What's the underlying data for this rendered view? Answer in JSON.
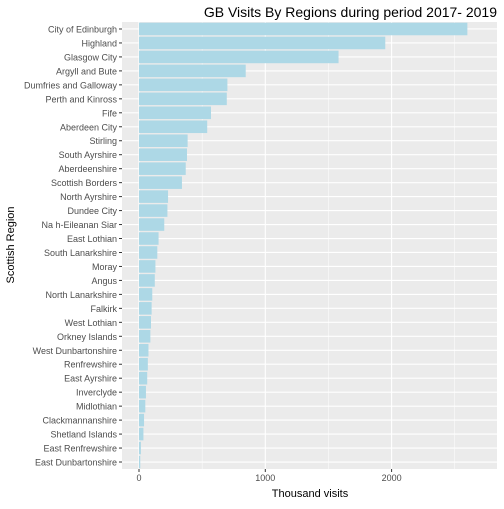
{
  "chart_data": {
    "type": "bar",
    "orientation": "horizontal",
    "title": "GB Visits By Regions during period 2017- 2019",
    "xlabel": "Thousand visits",
    "ylabel": "Scottish Region",
    "xlim": [
      0,
      2700
    ],
    "x_ticks": [
      0,
      1000,
      2000
    ],
    "grid": true,
    "colors": {
      "bar": "#ADD8E6",
      "panel": "#EBEBEB",
      "grid_major": "#FFFFFF",
      "text": "#000000",
      "tick_text": "#4D4D4D"
    },
    "categories": [
      "City of Edinburgh",
      "Highland",
      "Glasgow City",
      "Argyll and Bute",
      "Dumfries and Galloway",
      "Perth and Kinross",
      "Fife",
      "Aberdeen City",
      "Stirling",
      "South Ayrshire",
      "Aberdeenshire",
      "Scottish Borders",
      "North Ayrshire",
      "Dundee City",
      "Na h-Eileanan Siar",
      "East Lothian",
      "South Lanarkshire",
      "Moray",
      "Angus",
      "North Lanarkshire",
      "Falkirk",
      "West Lothian",
      "Orkney Islands",
      "West Dunbartonshire",
      "Renfrewshire",
      "East Ayrshire",
      "Inverclyde",
      "Midlothian",
      "Clackmannanshire",
      "Shetland Islands",
      "East Renfrewshire",
      "East Dunbartonshire"
    ],
    "values": [
      2600,
      1950,
      1580,
      845,
      700,
      695,
      570,
      540,
      385,
      380,
      370,
      340,
      230,
      225,
      200,
      155,
      145,
      130,
      125,
      105,
      100,
      95,
      90,
      75,
      70,
      65,
      55,
      50,
      40,
      35,
      15,
      10
    ]
  }
}
